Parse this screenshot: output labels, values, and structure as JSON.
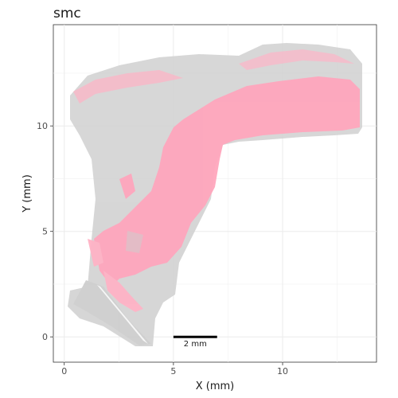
{
  "chart_data": {
    "type": "scatter",
    "title": "smc",
    "xlabel": "X (mm)",
    "ylabel": "Y (mm)",
    "xlim": [
      -0.5,
      14.3
    ],
    "ylim": [
      -1.2,
      14.8
    ],
    "x_ticks": [
      0,
      5,
      10
    ],
    "y_ticks": [
      0,
      5,
      10
    ],
    "grid": true,
    "scale_bar": {
      "x_start": 5,
      "x_end": 7,
      "y": 0,
      "label": "2 mm"
    },
    "series": [
      {
        "color": "#cccccc",
        "role": "background cells"
      },
      {
        "color": "#ffa6bd",
        "role": "highlighted cells"
      }
    ]
  }
}
